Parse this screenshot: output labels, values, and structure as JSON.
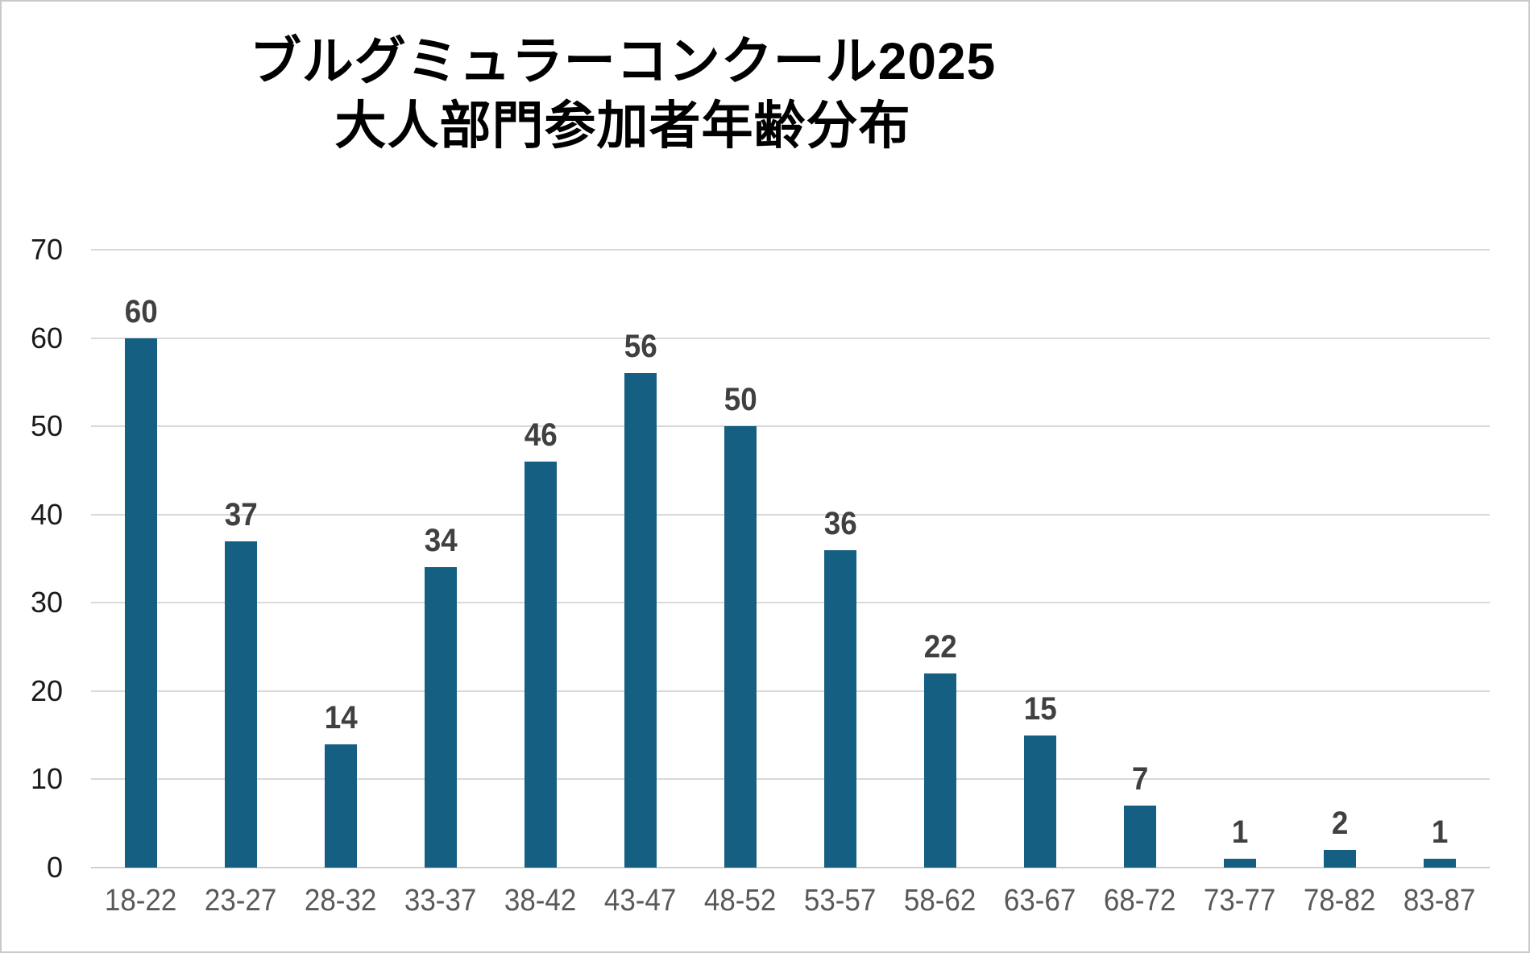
{
  "chart_data": {
    "type": "bar",
    "title": "ブルグミュラーコンクール2025 大人部門参加者年齢分布",
    "title_lines": [
      "ブルグミュラーコンクール2025",
      "大人部門参加者年齢分布"
    ],
    "categories": [
      "18-22",
      "23-27",
      "28-32",
      "33-37",
      "38-42",
      "43-47",
      "48-52",
      "53-57",
      "58-62",
      "63-67",
      "68-72",
      "73-77",
      "78-82",
      "83-87"
    ],
    "values": [
      60,
      37,
      14,
      34,
      46,
      56,
      50,
      36,
      22,
      15,
      7,
      1,
      2,
      1
    ],
    "xlabel": "",
    "ylabel": "",
    "ylim": [
      0,
      70
    ],
    "yticks": [
      0,
      10,
      20,
      30,
      40,
      50,
      60,
      70
    ],
    "grid": true,
    "legend": false,
    "data_labels": true,
    "colors": {
      "bar": "#156082",
      "gridline": "#d9d9d9",
      "zero_line": "#cfcfcf",
      "data_label": "#404040",
      "x_tick_label": "#595959",
      "y_tick_label": "#1a1a1a",
      "title": "#000000",
      "background": "#ffffff",
      "frame_border": "#c9c9c9"
    }
  }
}
